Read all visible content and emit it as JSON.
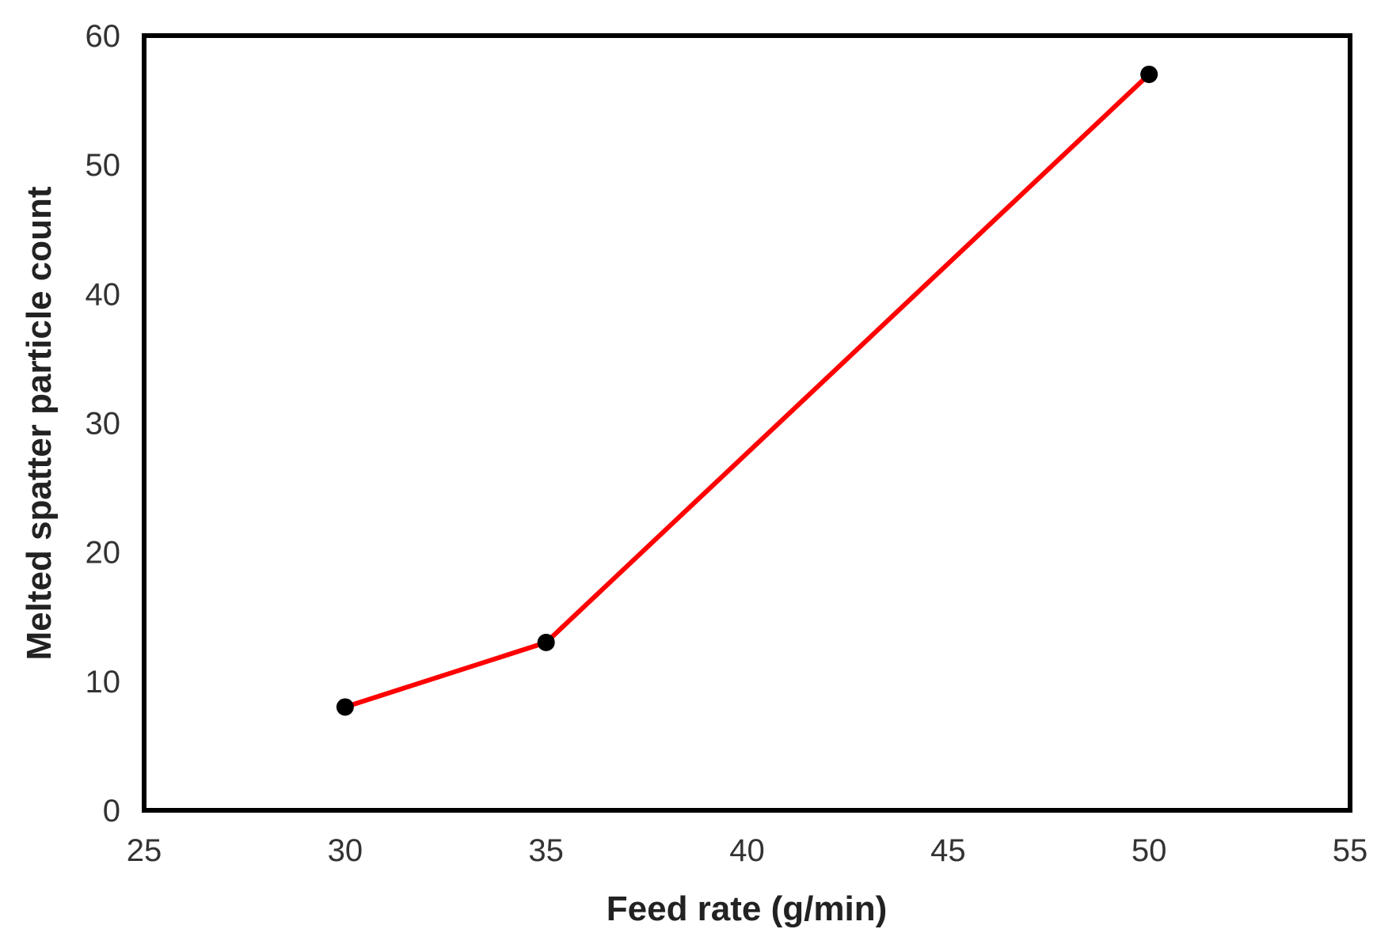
{
  "chart_data": {
    "type": "line",
    "title": "",
    "xlabel": "Feed rate (g/min)",
    "ylabel": "Melted spatter particle count",
    "xlim": [
      25,
      55
    ],
    "ylim": [
      0,
      60
    ],
    "xticks": [
      25,
      30,
      35,
      40,
      45,
      50,
      55
    ],
    "yticks": [
      0,
      10,
      20,
      30,
      40,
      50,
      60
    ],
    "grid": false,
    "legend": "none",
    "series": [
      {
        "name": "Melted spatter particle count",
        "x": [
          30,
          35,
          50
        ],
        "values": [
          8,
          13,
          57
        ],
        "line_color": "#ff0000",
        "marker_color": "#000000"
      }
    ]
  }
}
